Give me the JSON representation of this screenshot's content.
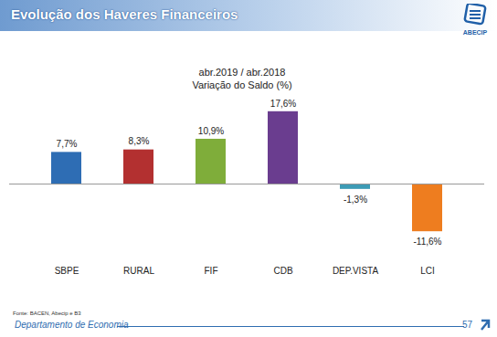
{
  "page": {
    "title": "Evolução dos Haveres Financeiros",
    "logo": "ABECIP",
    "source": "Fonte: BACEN, Abecip e B3",
    "footer": "Departamento de Economia",
    "page_number": "57"
  },
  "chart_data": {
    "type": "bar",
    "title": "abr.2019 / abr.2018",
    "subtitle": "Variação do Saldo (%)",
    "categories": [
      "SBPE",
      "RURAL",
      "FIF",
      "CDB",
      "DEP.VISTA",
      "LCI"
    ],
    "values": [
      7.7,
      8.3,
      10.9,
      17.6,
      -1.3,
      -11.6
    ],
    "value_labels": [
      "7,7%",
      "8,3%",
      "10,9%",
      "17,6%",
      "-1,3%",
      "-11,6%"
    ],
    "colors": [
      "#2e6db4",
      "#b33030",
      "#7fad3a",
      "#6a3d8f",
      "#3d9bb5",
      "#ee7d1f"
    ],
    "ylim": [
      -14,
      20
    ],
    "yticks": [],
    "data_labels": true,
    "tick_labels": "x",
    "grid": false
  }
}
